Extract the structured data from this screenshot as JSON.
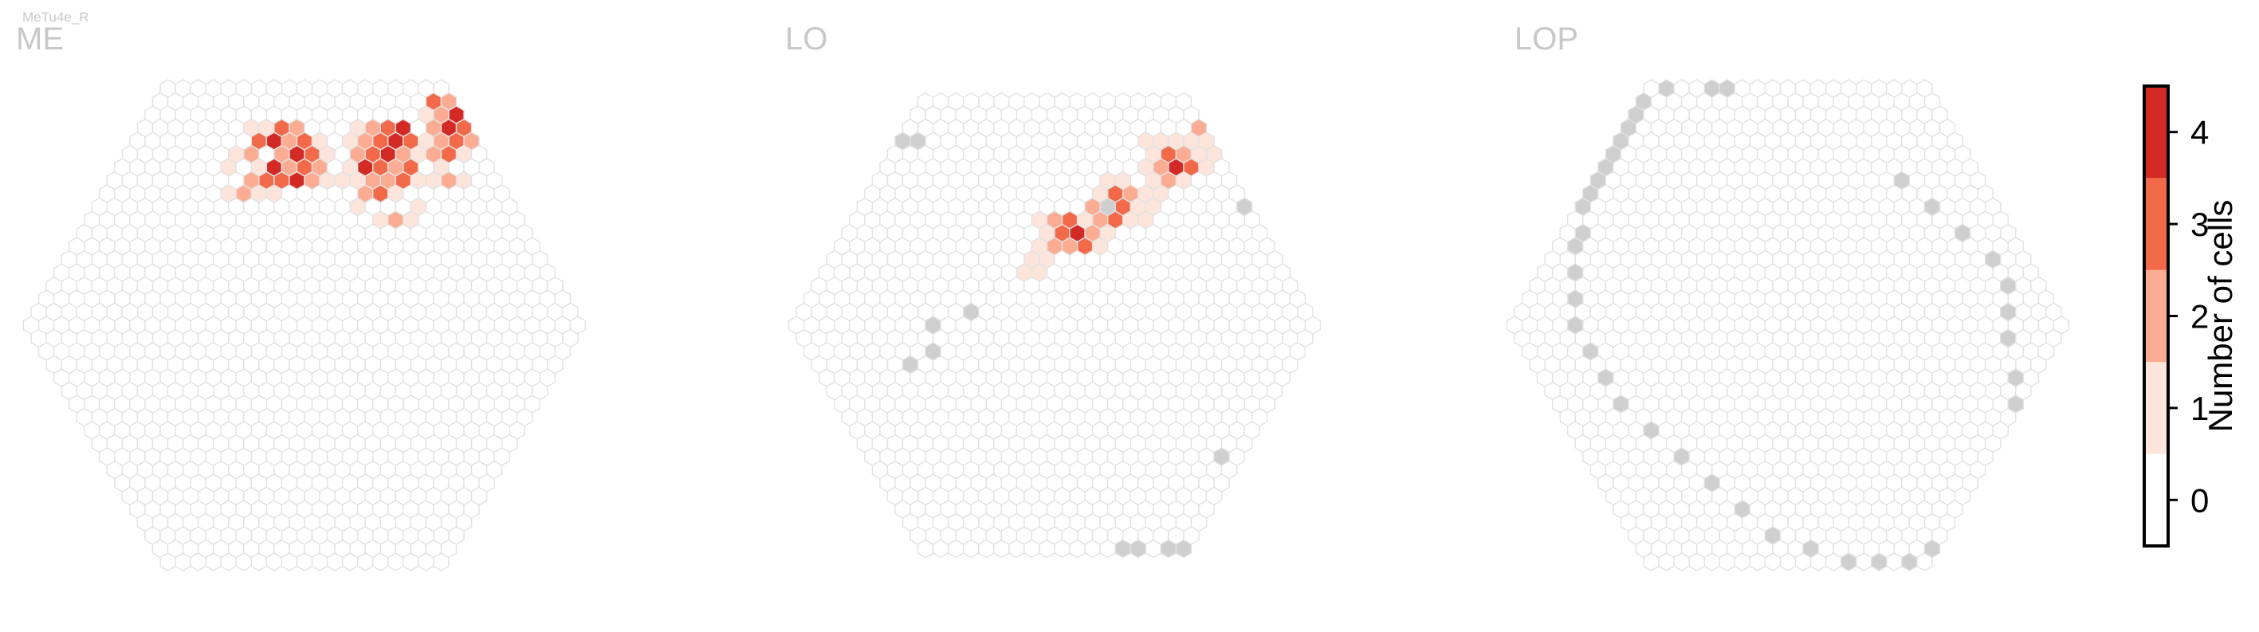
{
  "cell_type": "MeTu4e_R",
  "chart_data": {
    "type": "heatmap",
    "panels": [
      {
        "name": "ME",
        "radius": 18,
        "missing_cells": [],
        "counts": [
          [
            6,
            -15,
            3
          ],
          [
            5,
            -15,
            1
          ],
          [
            7,
            -15,
            2
          ],
          [
            4,
            -15,
            1
          ],
          [
            5,
            -14,
            4
          ],
          [
            6,
            -14,
            2
          ],
          [
            7,
            -14,
            3
          ],
          [
            4,
            -14,
            3
          ],
          [
            8,
            -14,
            1
          ],
          [
            5,
            -13,
            2
          ],
          [
            6,
            -13,
            4
          ],
          [
            3,
            -13,
            2
          ],
          [
            7,
            -13,
            3
          ],
          [
            8,
            -13,
            1
          ],
          [
            2,
            -13,
            1
          ],
          [
            6,
            -12,
            3
          ],
          [
            4,
            -12,
            4
          ],
          [
            5,
            -12,
            2
          ],
          [
            3,
            -12,
            1
          ],
          [
            7,
            -12,
            2
          ],
          [
            1,
            -12,
            1
          ],
          [
            4,
            -11,
            3
          ],
          [
            5,
            -11,
            4
          ],
          [
            6,
            -11,
            2
          ],
          [
            3,
            -11,
            3
          ],
          [
            2,
            -11,
            2
          ],
          [
            7,
            -11,
            1
          ],
          [
            8,
            -11,
            1
          ],
          [
            9,
            -11,
            1
          ],
          [
            12,
            -15,
            2
          ],
          [
            13,
            -15,
            3
          ],
          [
            14,
            -15,
            4
          ],
          [
            11,
            -15,
            1
          ],
          [
            12,
            -14,
            3
          ],
          [
            13,
            -14,
            4
          ],
          [
            11,
            -14,
            2
          ],
          [
            14,
            -14,
            3
          ],
          [
            10,
            -14,
            1
          ],
          [
            12,
            -13,
            4
          ],
          [
            11,
            -13,
            3
          ],
          [
            13,
            -13,
            2
          ],
          [
            10,
            -13,
            2
          ],
          [
            14,
            -13,
            1
          ],
          [
            11,
            -12,
            3
          ],
          [
            12,
            -12,
            2
          ],
          [
            13,
            -12,
            3
          ],
          [
            10,
            -12,
            4
          ],
          [
            9,
            -12,
            1
          ],
          [
            11,
            -11,
            2
          ],
          [
            12,
            -11,
            3
          ],
          [
            10,
            -11,
            2
          ],
          [
            13,
            -11,
            1
          ],
          [
            9,
            -10,
            2
          ],
          [
            10,
            -10,
            3
          ],
          [
            11,
            -10,
            1
          ],
          [
            18,
            -17,
            2
          ],
          [
            19,
            -17,
            4
          ],
          [
            17,
            -17,
            3
          ],
          [
            20,
            -17,
            1
          ],
          [
            18,
            -16,
            4
          ],
          [
            19,
            -16,
            3
          ],
          [
            17,
            -16,
            2
          ],
          [
            16,
            -16,
            1
          ],
          [
            20,
            -16,
            2
          ],
          [
            18,
            -15,
            3
          ],
          [
            17,
            -15,
            4
          ],
          [
            16,
            -15,
            2
          ],
          [
            19,
            -15,
            1
          ],
          [
            17,
            -14,
            3
          ],
          [
            16,
            -14,
            2
          ],
          [
            18,
            -14,
            2
          ],
          [
            15,
            -14,
            1
          ],
          [
            16,
            -13,
            3
          ],
          [
            17,
            -13,
            1
          ],
          [
            15,
            -13,
            2
          ],
          [
            10,
            -8,
            2
          ],
          [
            11,
            -8,
            1
          ],
          [
            9,
            -8,
            1
          ],
          [
            12,
            -9,
            1
          ],
          [
            2,
            -10,
            1
          ],
          [
            1,
            -10,
            2
          ],
          [
            3,
            -10,
            1
          ],
          [
            0,
            -10,
            1
          ],
          [
            15,
            -12,
            1
          ],
          [
            14,
            -11,
            1
          ],
          [
            16,
            -11,
            1
          ],
          [
            15,
            -11,
            2
          ],
          [
            8,
            -9,
            1
          ]
        ]
      },
      {
        "name": "LO",
        "radius": 17,
        "missing_cells": [
          [
            -3,
            -14
          ],
          [
            -2,
            -14
          ],
          [
            17,
            -9
          ],
          [
            8,
            -9
          ],
          [
            -5,
            -1
          ],
          [
            -11,
            3
          ],
          [
            -1,
            17
          ],
          [
            -3,
            17
          ],
          [
            -4,
            17
          ],
          [
            0,
            17
          ],
          [
            1,
            17
          ],
          [
            3,
            15
          ],
          [
            6,
            10
          ],
          [
            6,
            13
          ],
          [
            -8,
            0
          ],
          [
            -9,
            2
          ]
        ],
        "counts": [
          [
            5,
            -8,
            3
          ],
          [
            4,
            -8,
            2
          ],
          [
            6,
            -8,
            1
          ],
          [
            5,
            -7,
            4
          ],
          [
            4,
            -7,
            3
          ],
          [
            6,
            -7,
            2
          ],
          [
            3,
            -7,
            1
          ],
          [
            4,
            -6,
            2
          ],
          [
            5,
            -6,
            3
          ],
          [
            3,
            -6,
            2
          ],
          [
            2,
            -6,
            1
          ],
          [
            9,
            -10,
            3
          ],
          [
            10,
            -10,
            2
          ],
          [
            8,
            -10,
            1
          ],
          [
            9,
            -9,
            3
          ],
          [
            8,
            -9,
            4
          ],
          [
            10,
            -9,
            1
          ],
          [
            7,
            -9,
            2
          ],
          [
            8,
            -8,
            3
          ],
          [
            9,
            -8,
            1
          ],
          [
            7,
            -8,
            2
          ],
          [
            14,
            -13,
            3
          ],
          [
            15,
            -13,
            2
          ],
          [
            13,
            -13,
            1
          ],
          [
            14,
            -12,
            4
          ],
          [
            15,
            -12,
            3
          ],
          [
            13,
            -12,
            2
          ],
          [
            16,
            -12,
            1
          ],
          [
            13,
            -11,
            2
          ],
          [
            14,
            -11,
            1
          ],
          [
            18,
            -15,
            3
          ],
          [
            19,
            -15,
            4
          ],
          [
            17,
            -15,
            2
          ],
          [
            18,
            -14,
            3
          ],
          [
            17,
            -14,
            1
          ],
          [
            19,
            -14,
            2
          ],
          [
            20,
            -16,
            1
          ],
          [
            2,
            -5,
            1
          ],
          [
            1,
            -5,
            1
          ],
          [
            6,
            -6,
            1
          ],
          [
            7,
            -7,
            1
          ],
          [
            10,
            -8,
            1
          ],
          [
            11,
            -9,
            1
          ],
          [
            12,
            -10,
            1
          ],
          [
            11,
            -10,
            1
          ],
          [
            12,
            -11,
            1
          ],
          [
            16,
            -13,
            1
          ],
          [
            15,
            -14,
            1
          ],
          [
            16,
            -14,
            1
          ],
          [
            12,
            -12,
            1
          ],
          [
            1,
            -4,
            1
          ],
          [
            0,
            -4,
            1
          ],
          [
            10,
            -11,
            1
          ],
          [
            9,
            -11,
            1
          ],
          [
            3,
            -8,
            1
          ],
          [
            17,
            -13,
            1
          ],
          [
            13,
            -14,
            1
          ],
          [
            14,
            -14,
            1
          ]
        ]
      },
      {
        "name": "LOP",
        "radius": 18,
        "missing_cells": [
          [
            -9,
            -9
          ],
          [
            -8,
            -10
          ],
          [
            -7,
            -11
          ],
          [
            -6,
            -12
          ],
          [
            -5,
            -13
          ],
          [
            -4,
            -14
          ],
          [
            -3,
            -15
          ],
          [
            -10,
            -7
          ],
          [
            -11,
            -6
          ],
          [
            -12,
            -4
          ],
          [
            -13,
            -2
          ],
          [
            -14,
            0
          ],
          [
            -14,
            2
          ],
          [
            -14,
            4
          ],
          [
            -14,
            6
          ],
          [
            -13,
            8
          ],
          [
            -12,
            10
          ],
          [
            -11,
            12
          ],
          [
            -10,
            14
          ],
          [
            -9,
            16
          ],
          [
            -7,
            17
          ],
          [
            -5,
            18
          ],
          [
            -3,
            18
          ],
          [
            -1,
            18
          ],
          [
            1,
            17
          ],
          [
            3,
            16
          ],
          [
            5,
            14
          ],
          [
            7,
            12
          ],
          [
            9,
            10
          ],
          [
            11,
            8
          ],
          [
            12,
            6
          ],
          [
            13,
            4
          ],
          [
            14,
            1
          ],
          [
            15,
            -1
          ],
          [
            16,
            -3
          ],
          [
            16,
            -5
          ],
          [
            15,
            -7
          ],
          [
            14,
            -9
          ],
          [
            13,
            -11
          ],
          [
            4,
            -18
          ],
          [
            5,
            -18
          ],
          [
            1,
            -18
          ],
          [
            -1,
            -17
          ],
          [
            -2,
            -16
          ]
        ]
      }
    ],
    "colorbar": {
      "label": "Number of cells",
      "ticks": [
        0,
        1,
        2,
        3,
        4
      ],
      "range": [
        -0.5,
        4.5
      ],
      "colors": [
        "#ffffff",
        "#fde5dc",
        "#fcac92",
        "#f36a4a",
        "#d42a25"
      ]
    },
    "missing_color": "#cfcfcf",
    "empty_color": "#ffffff",
    "edge_color": "#e2e2e2"
  }
}
